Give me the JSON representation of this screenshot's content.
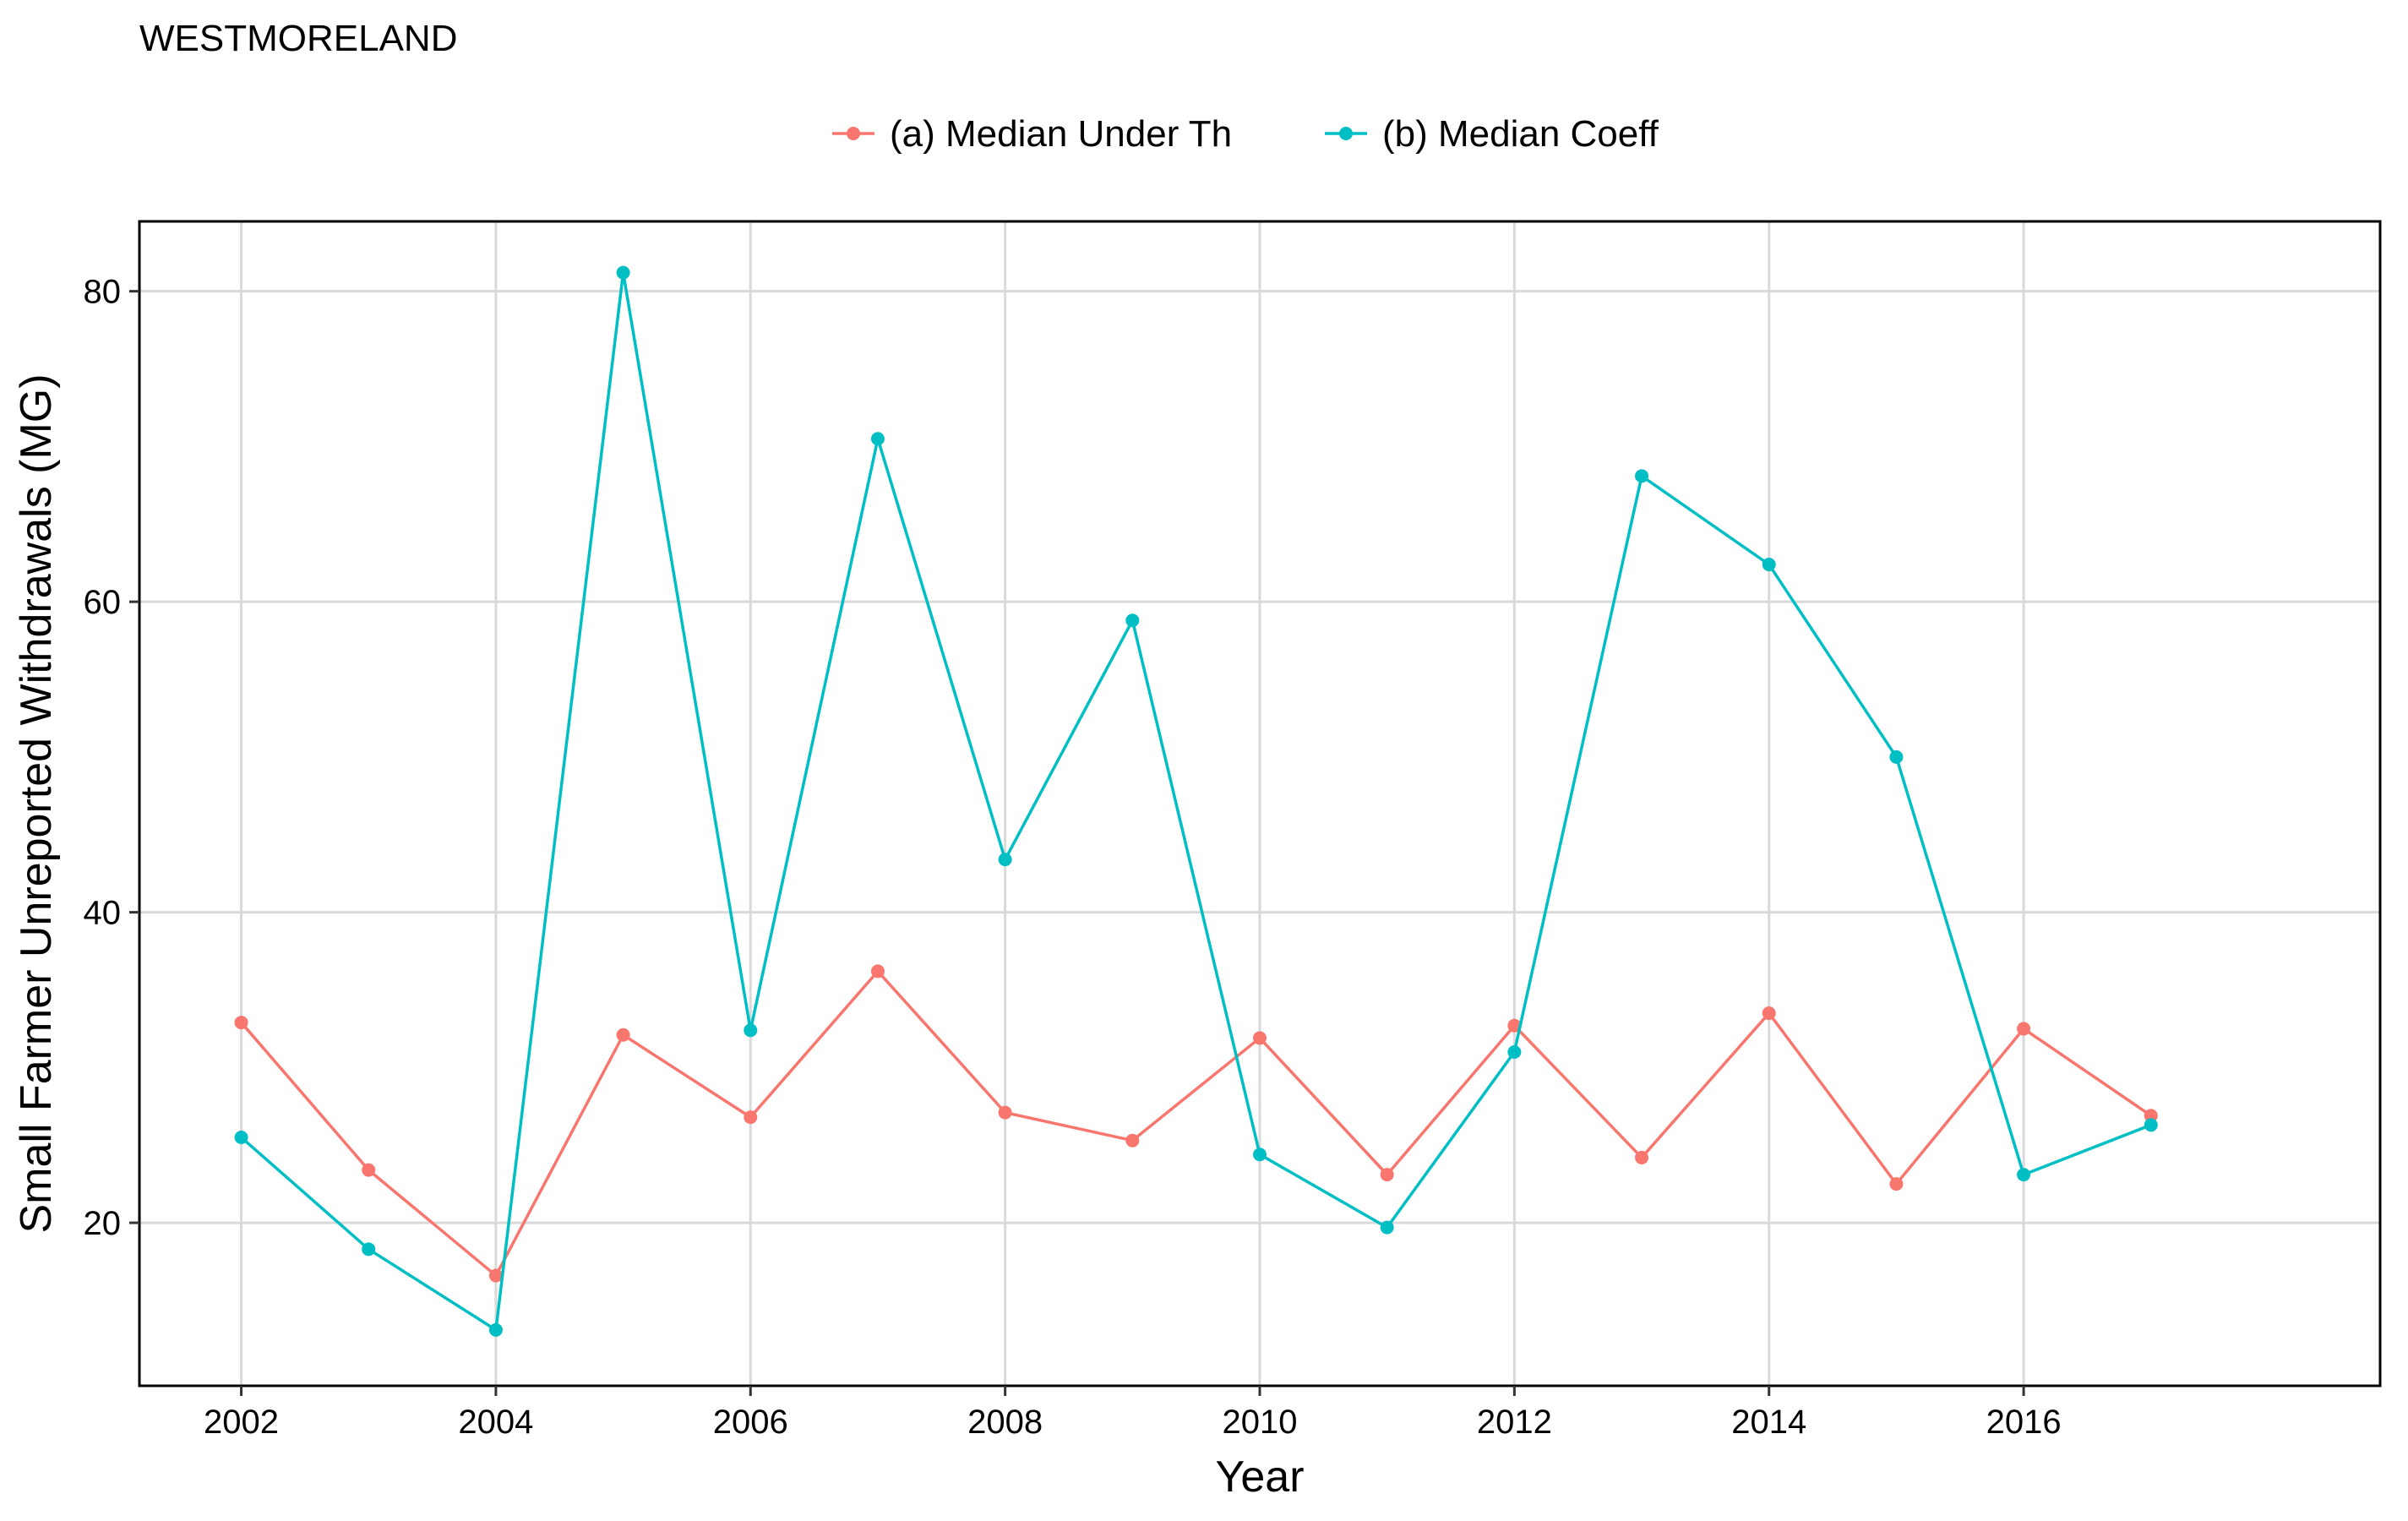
{
  "chart_data": {
    "type": "line",
    "title": "WESTMORELAND",
    "xlabel": "Year",
    "ylabel": "Small Farmer Unreported Withdrawals (MG)",
    "xlim": [
      2001.2,
      2018.8
    ],
    "ylim": [
      9.5,
      84.5
    ],
    "x_ticks": [
      2002,
      2004,
      2006,
      2008,
      2010,
      2012,
      2014,
      2016
    ],
    "y_ticks": [
      20,
      40,
      60,
      80
    ],
    "grid": true,
    "legend_position": "top",
    "x": [
      2002,
      2003,
      2004,
      2005,
      2006,
      2007,
      2008,
      2009,
      2010,
      2011,
      2012,
      2013,
      2014,
      2015,
      2016,
      2017
    ],
    "series": [
      {
        "name": "(a) Median Under Th",
        "color": "#F8766D",
        "values": [
          32.9,
          23.4,
          16.6,
          32.1,
          26.8,
          36.2,
          27.1,
          25.3,
          31.9,
          23.1,
          32.7,
          24.2,
          33.5,
          22.5,
          32.5,
          26.9
        ]
      },
      {
        "name": "(b) Median Coeff",
        "color": "#00BFC4",
        "values": [
          25.5,
          18.3,
          13.1,
          81.2,
          32.4,
          70.5,
          43.4,
          58.8,
          24.4,
          19.7,
          31.0,
          68.1,
          62.4,
          50.0,
          23.1,
          26.3
        ]
      }
    ]
  }
}
